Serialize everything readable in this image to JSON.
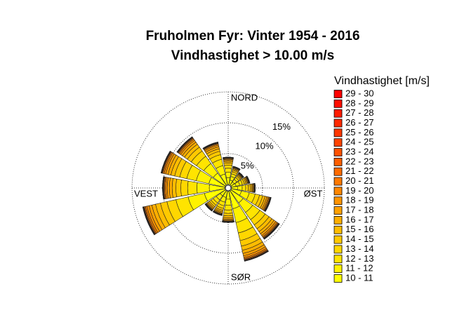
{
  "chart_data": {
    "type": "windrose",
    "title": "Fruholmen Fyr: Vinter 1954 - 2016",
    "subtitle": "Vindhastighet > 10.00 m/s",
    "legend_title": "Vindhastighet [m/s]",
    "categories": [
      "NORD",
      null,
      null,
      null,
      "ØST",
      null,
      null,
      null,
      "SØR",
      null,
      null,
      null,
      "VEST",
      null,
      null,
      null
    ],
    "rlim": [
      0,
      15
    ],
    "rticks": [
      {
        "value": 5,
        "label": "5%"
      },
      {
        "value": 10,
        "label": "10%"
      },
      {
        "value": 15,
        "label": "15%"
      }
    ],
    "series": [
      {
        "name": "10 - 11",
        "color": "#ffff00",
        "values": [
          1.1,
          0.75,
          0.63,
          0.75,
          0.95,
          1.63,
          2.38,
          2.88,
          1.25,
          1,
          1,
          3.38,
          2.5,
          2.63,
          2.38,
          1.75
        ]
      },
      {
        "name": "11 - 12",
        "color": "#fff200",
        "values": [
          0.88,
          0.6,
          0.5,
          0.6,
          0.76,
          1.3,
          1.9,
          2.3,
          1,
          0.8,
          0.8,
          2.7,
          2,
          2.1,
          1.9,
          1.4
        ]
      },
      {
        "name": "12 - 13",
        "color": "#ffe400",
        "values": [
          0.66,
          0.45,
          0.38,
          0.45,
          0.57,
          0.98,
          1.43,
          1.73,
          0.75,
          0.6,
          0.6,
          2.03,
          1.5,
          1.58,
          1.43,
          1.05
        ]
      },
      {
        "name": "13 - 14",
        "color": "#ffd700",
        "values": [
          0.48,
          0.33,
          0.28,
          0.33,
          0.42,
          0.72,
          1.05,
          1.27,
          0.55,
          0.44,
          0.44,
          1.49,
          1.1,
          1.16,
          1.05,
          0.77
        ]
      },
      {
        "name": "14 - 15",
        "color": "#ffc900",
        "values": [
          0.35,
          0.24,
          0.2,
          0.24,
          0.3,
          0.52,
          0.76,
          0.92,
          0.4,
          0.32,
          0.32,
          1.08,
          0.8,
          0.84,
          0.76,
          0.56
        ]
      },
      {
        "name": "15 - 16",
        "color": "#ffbc00",
        "values": [
          0.26,
          0.18,
          0.15,
          0.18,
          0.23,
          0.39,
          0.57,
          0.69,
          0.3,
          0.24,
          0.24,
          0.81,
          0.6,
          0.63,
          0.57,
          0.42
        ]
      },
      {
        "name": "16 - 17",
        "color": "#ffae00",
        "values": [
          0.2,
          0.14,
          0.11,
          0.14,
          0.17,
          0.29,
          0.43,
          0.52,
          0.23,
          0.18,
          0.18,
          0.61,
          0.45,
          0.47,
          0.43,
          0.32
        ]
      },
      {
        "name": "17 - 18",
        "color": "#ffa100",
        "values": [
          0.15,
          0.11,
          0.09,
          0.11,
          0.13,
          0.23,
          0.33,
          0.4,
          0.18,
          0.14,
          0.14,
          0.47,
          0.35,
          0.37,
          0.33,
          0.25
        ]
      },
      {
        "name": "18 - 19",
        "color": "#ff9400",
        "values": [
          0.11,
          0.08,
          0.06,
          0.08,
          0.1,
          0.16,
          0.24,
          0.29,
          0.13,
          0.1,
          0.1,
          0.34,
          0.25,
          0.26,
          0.24,
          0.18
        ]
      },
      {
        "name": "19 - 20",
        "color": "#ff8600",
        "values": [
          0.08,
          0.05,
          0.05,
          0.05,
          0.07,
          0.12,
          0.17,
          0.21,
          0.09,
          0.07,
          0.07,
          0.24,
          0.18,
          0.19,
          0.17,
          0.13
        ]
      },
      {
        "name": "20 - 21",
        "color": "#ff7900",
        "values": [
          0.05,
          0.04,
          0.03,
          0.04,
          0.05,
          0.08,
          0.11,
          0.14,
          0.06,
          0.05,
          0.05,
          0.16,
          0.12,
          0.13,
          0.11,
          0.08
        ]
      },
      {
        "name": "21 - 22",
        "color": "#ff6b00",
        "values": [
          0.04,
          0.02,
          0.02,
          0.02,
          0.03,
          0.05,
          0.08,
          0.09,
          0.04,
          0.03,
          0.03,
          0.11,
          0.08,
          0.08,
          0.08,
          0.06
        ]
      },
      {
        "name": "22 - 23",
        "color": "#ff5e00",
        "values": [
          0.02,
          0.02,
          0.01,
          0.02,
          0.02,
          0.03,
          0.05,
          0.06,
          0.03,
          0.02,
          0.02,
          0.07,
          0.05,
          0.05,
          0.05,
          0.04
        ]
      },
      {
        "name": "23 - 24",
        "color": "#ff5100",
        "values": [
          0.01,
          0.01,
          0.01,
          0.01,
          0.01,
          0.02,
          0.03,
          0.03,
          0.02,
          0.01,
          0.01,
          0.04,
          0.03,
          0.03,
          0.03,
          0.02
        ]
      },
      {
        "name": "24 - 25",
        "color": "#ff4300",
        "values": [
          0.01,
          0.01,
          0,
          0.01,
          0.01,
          0.01,
          0.02,
          0.02,
          0.01,
          0.01,
          0.01,
          0.03,
          0.02,
          0.02,
          0.02,
          0.01
        ]
      },
      {
        "name": "25 - 26",
        "color": "#ff3600",
        "values": [
          0.01,
          0,
          0,
          0,
          0,
          0.01,
          0.01,
          0.01,
          0,
          0,
          0,
          0.01,
          0.01,
          0.01,
          0.01,
          0.01
        ]
      },
      {
        "name": "26 - 27",
        "color": "#ff2800",
        "values": [
          0.01,
          0,
          0,
          0,
          0,
          0.01,
          0.01,
          0.01,
          0,
          0,
          0,
          0.01,
          0.01,
          0.01,
          0.01,
          0.01
        ]
      },
      {
        "name": "27 - 28",
        "color": "#ff1b00",
        "values": [
          0,
          0,
          0,
          0,
          0,
          0,
          0.01,
          0.01,
          0,
          0,
          0,
          0.01,
          0.01,
          0.01,
          0,
          0
        ]
      },
      {
        "name": "28 - 29",
        "color": "#ff0d00",
        "values": [
          0,
          0,
          0,
          0,
          0,
          0,
          0.01,
          0.01,
          0,
          0,
          0,
          0.01,
          0,
          0,
          0,
          0
        ]
      },
      {
        "name": "29 - 30",
        "color": "#ff0000",
        "values": [
          0,
          0,
          0,
          0,
          0,
          0,
          0,
          0.01,
          0,
          0,
          0,
          0.01,
          0,
          0,
          0,
          0
        ]
      }
    ]
  }
}
